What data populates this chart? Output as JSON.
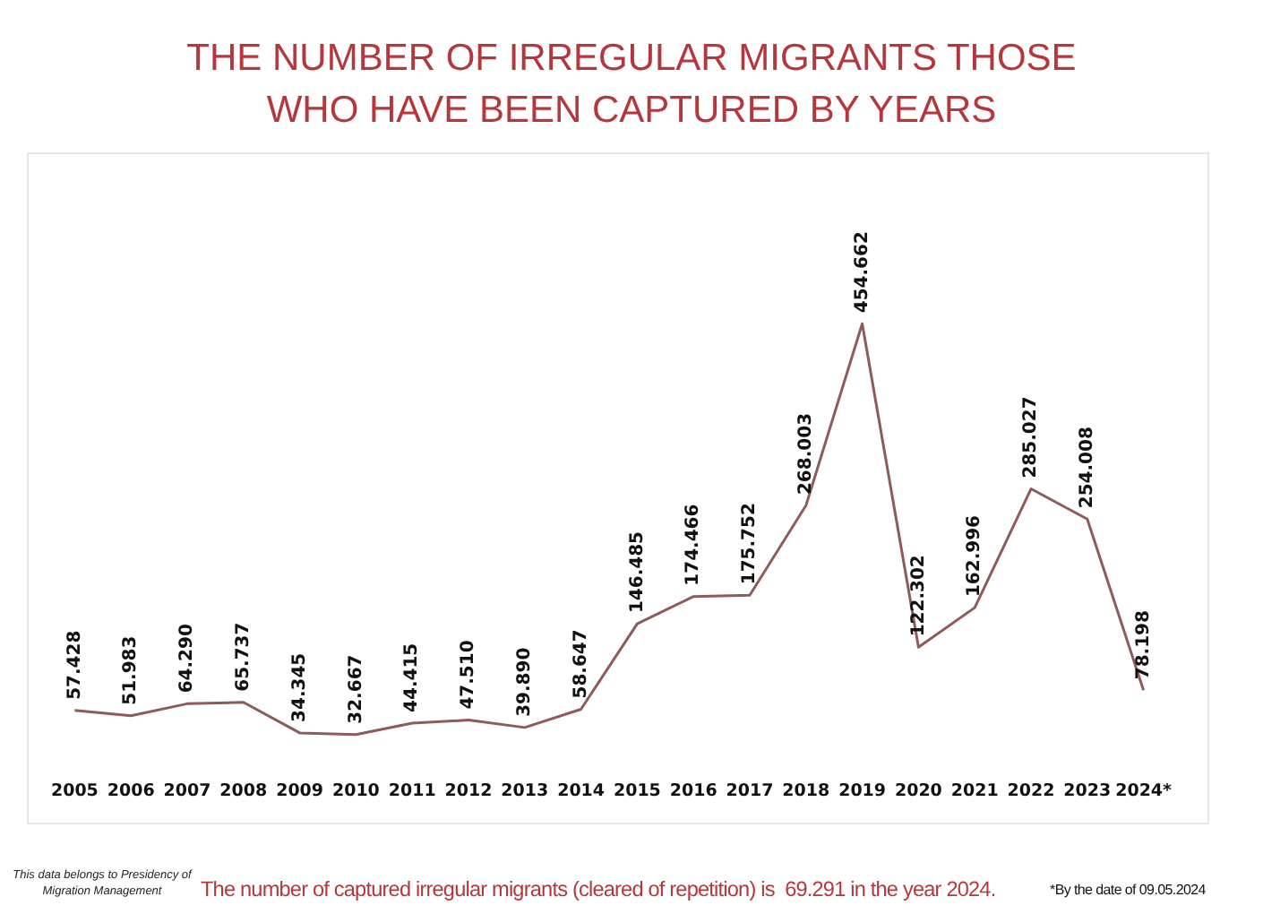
{
  "chart_data": {
    "type": "line",
    "title": "THE NUMBER OF IRREGULAR MIGRANTS THOSE\nWHO HAVE BEEN CAPTURED BY YEARS",
    "categories": [
      "2005",
      "2006",
      "2007",
      "2008",
      "2009",
      "2010",
      "2011",
      "2012",
      "2013",
      "2014",
      "2015",
      "2016",
      "2017",
      "2018",
      "2019",
      "2020",
      "2021",
      "2022",
      "2023",
      "2024*"
    ],
    "series": [
      {
        "color": "#8f5a5a",
        "values": [
          57428,
          51983,
          64290,
          65737,
          34345,
          32667,
          44415,
          47510,
          39890,
          58647,
          146485,
          174466,
          175752,
          268003,
          454662,
          122302,
          162996,
          285027,
          254008,
          78198
        ],
        "value_labels": [
          "57.428",
          "51.983",
          "64.290",
          "65.737",
          "34.345",
          "32.667",
          "44.415",
          "47.510",
          "39.890",
          "58.647",
          "146.485",
          "174.466",
          "175.752",
          "268.003",
          "454.662",
          "122.302",
          "162.996",
          "285.027",
          "254.008",
          "78.198"
        ]
      }
    ],
    "tick_labels": "x",
    "grid": false,
    "legend": false,
    "marker": "none",
    "annotations": [
      "This data belongs to Presidency of Migration Management",
      "The number of captured irregular migrants (cleared of repetition) is  69.291 in the year 2024.",
      "*By the date of 09.05.2024"
    ]
  }
}
